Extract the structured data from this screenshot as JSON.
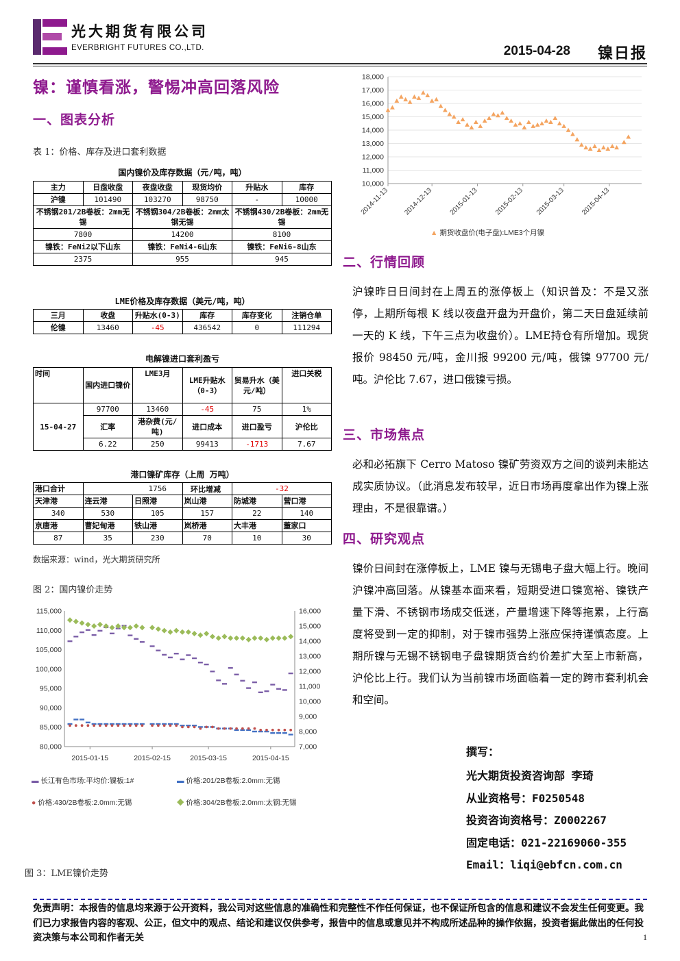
{
  "header": {
    "company_cn": "光大期货有限公司",
    "company_en": "EVERBRIGHT FUTURES CO.,LTD.",
    "date": "2015-04-28",
    "report_type": "镍日报"
  },
  "title": "镍：谨慎看涨，警惕冲高回落风险",
  "sections": {
    "s1": "一、图表分析",
    "s2": "二、行情回顾",
    "s3": "三、市场焦点",
    "s4": "四、研究观点"
  },
  "captions": {
    "table1": "表 1：价格、库存及进口套利数据",
    "source": "数据来源：wind，光大期货研究所",
    "fig2": "图 2：国内镍价走势",
    "fig3": "图 3：LME镍价走势"
  },
  "domestic": {
    "title": "国内镍价及库存数据（元/吨，吨）",
    "headers": [
      "主力",
      "日盘收盘",
      "夜盘收盘",
      "现货均价",
      "升贴水",
      "库存"
    ],
    "row": [
      "沪镍",
      "101490",
      "103270",
      "98750",
      "-",
      "10000"
    ],
    "ss_labels": [
      "不锈钢201/2B卷板：2mm无锡",
      "不锈钢304/2B卷板：2mm太钢无锡",
      "不锈钢430/2B卷板：2mm无锡"
    ],
    "ss_values": [
      "7800",
      "14200",
      "8100"
    ],
    "fe_labels": [
      "镍铁：FeNi2以下山东",
      "镍铁：FeNi4-6山东",
      "镍铁：FeNi6-8山东"
    ],
    "fe_values": [
      "2375",
      "955",
      "945"
    ]
  },
  "lme": {
    "title": "LME价格及库存数据（美元/吨，吨）",
    "headers": [
      "三月",
      "收盘",
      "升贴水(0-3)",
      "库存",
      "库存变化",
      "注销仓单"
    ],
    "row": [
      "伦镍",
      "13460",
      "-45",
      "436542",
      "0",
      "111294"
    ]
  },
  "arb": {
    "title": "电解镍进口套利盈亏",
    "headers": [
      "时间",
      "国内进口镍价",
      "LME3月",
      "LME升贴水（0-3）",
      "贸易升水（美元/吨）",
      "进口关税"
    ],
    "date": "15-04-27",
    "row1": [
      "97700",
      "13460",
      "-45",
      "75",
      "1%"
    ],
    "headers2": [
      "汇率",
      "港杂费(元/吨)",
      "进口成本",
      "进口盈亏",
      "沪伦比"
    ],
    "row2": [
      "6.22",
      "250",
      "99413",
      "-1713",
      "7.67"
    ]
  },
  "port": {
    "title": "港口镍矿库存（上周 万吨）",
    "total_label": "港口合计",
    "total_value": "1756",
    "chg_label": "环比增减",
    "chg_value": "-32",
    "names1": [
      "天津港",
      "连云港",
      "日照港",
      "岚山港",
      "防城港",
      "营口港"
    ],
    "vals1": [
      "340",
      "530",
      "105",
      "157",
      "22",
      "140"
    ],
    "names2": [
      "京唐港",
      "曹妃甸港",
      "铁山港",
      "岚桥港",
      "大丰港",
      "董家口"
    ],
    "vals2": [
      "87",
      "35",
      "230",
      "70",
      "10",
      "30"
    ]
  },
  "paragraphs": {
    "review": "沪镍昨日日间封在上周五的涨停板上（知识普及：不是又涨停，上期所每根 K 线以夜盘开盘为开盘价，第二天日盘延续前一天的 K 线，下午三点为收盘价）。LME持仓有所增加。现货报价 98450 元/吨，金川报 99200 元/吨，俄镍 97700 元/吨。沪伦比 7.67，进口俄镍亏损。",
    "focus": "必和必拓旗下 Cerro Matoso 镍矿劳资双方之间的谈判未能达成实质协议。（此消息发布较早，近日市场再度拿出作为镍上涨理由，不是很靠谱。）",
    "view": "镍价日间封在涨停板上，LME 镍与无锡电子盘大幅上行。晚间沪镍冲高回落。从镍基本面来看，短期受进口镍宽裕、镍铁产量下滑、不锈钢市场成交低迷，产量增速下降等拖累，上行高度将受到一定的抑制，对于镍市强势上涨应保持谨慎态度。上期所镍与无锡不锈钢电子盘镍期货合约价差扩大至上市新高，沪伦比上行。我们认为当前镍市场面临着一定的跨市套利机会和空间。"
  },
  "author": {
    "write": "撰写：",
    "dept": "光大期货投资咨询部  李琦",
    "cert1": "从业资格号：F0250548",
    "cert2": "投资咨询资格号：Z0002267",
    "phone": "固定电话：021-22169060-355",
    "email": "Email：liqi@ebfcn.com.cn"
  },
  "disclaimer": "免责声明：本报告的信息均来源于公开资料，我公司对这些信息的准确性和完整性不作任何保证，也不保证所包含的信息和建议不会发生任何变更。我们已力求报告内容的客观、公正，但文中的观点、结论和建议仅供参考，报告中的信息或意见并不构成所述品种的操作依据，投资者据此做出的任何投资决策与本公司和作者无关",
  "page": "1",
  "chart_data": [
    {
      "type": "scatter",
      "marker": "triangle",
      "color": "#f4a460",
      "series": [
        {
          "name": "期货收盘价(电子盘):LME3个月镍"
        }
      ],
      "x_ticks": [
        "2014-11-13",
        "2014-12-13",
        "2015-01-13",
        "2015-02-13",
        "2015-03-13",
        "2015-04-13"
      ],
      "y_ticks": [
        "10,000",
        "11,000",
        "12,000",
        "13,000",
        "14,000",
        "15,000",
        "16,000",
        "17,000",
        "18,000"
      ],
      "ylim": [
        10000,
        18000
      ],
      "x_start": "2014-11-13",
      "x_days": [
        0,
        3,
        6,
        9,
        12,
        15,
        18,
        21,
        24,
        27,
        30,
        33,
        36,
        39,
        42,
        45,
        48,
        51,
        54,
        57,
        60,
        63,
        66,
        69,
        72,
        75,
        78,
        81,
        84,
        87,
        90,
        93,
        96,
        99,
        102,
        105,
        108,
        111,
        114,
        117,
        120,
        123,
        126,
        129,
        132,
        135,
        138,
        141,
        144,
        147,
        150,
        153,
        156,
        161,
        164
      ],
      "values": [
        15500,
        15700,
        16200,
        16500,
        16300,
        16100,
        16500,
        16400,
        16800,
        16600,
        16200,
        16300,
        15800,
        15500,
        15200,
        15000,
        14600,
        14800,
        14400,
        14200,
        14600,
        14300,
        14700,
        14900,
        15200,
        15100,
        15300,
        14900,
        14700,
        14400,
        14500,
        14200,
        14600,
        14300,
        14400,
        14500,
        14700,
        14600,
        14900,
        14500,
        14300,
        14000,
        13700,
        13300,
        12900,
        12700,
        12600,
        12800,
        12500,
        12700,
        12600,
        12800,
        12700,
        13100,
        13500
      ]
    },
    {
      "type": "scatter",
      "marker": "dash",
      "x_ticks": [
        "2015-01-15",
        "2015-02-15",
        "2015-03-15",
        "2015-04-15"
      ],
      "y_left_ticks": [
        "80,000",
        "85,000",
        "90,000",
        "95,000",
        "100,000",
        "105,000",
        "110,000",
        "115,000"
      ],
      "y_right_ticks": [
        "7,000",
        "8,000",
        "9,000",
        "10,000",
        "11,000",
        "12,000",
        "13,000",
        "14,000",
        "15,000",
        "16,000"
      ],
      "ylim_left": [
        80000,
        115000
      ],
      "ylim_right": [
        7000,
        16000
      ],
      "x_start": "2015-01-05",
      "series": [
        {
          "name": "长江有色市场:平均价:镍板:1#",
          "axis": "left",
          "color": "#7b5ea7",
          "x_days": [
            0,
            3,
            6,
            9,
            12,
            15,
            18,
            21,
            24,
            27,
            30,
            33,
            36,
            41,
            44,
            47,
            50,
            53,
            56,
            59,
            62,
            65,
            68,
            71,
            74,
            77,
            80,
            83,
            86,
            89,
            92,
            95,
            98,
            101,
            104,
            107,
            110
          ],
          "values": [
            107200,
            108400,
            109500,
            110100,
            108800,
            109900,
            110800,
            109200,
            110500,
            111200,
            108700,
            107800,
            107000,
            105900,
            104800,
            103700,
            103000,
            104000,
            102500,
            103600,
            102800,
            101700,
            101200,
            99400,
            97100,
            96200,
            100300,
            98600,
            97000,
            95100,
            96600,
            94000,
            94300,
            96000,
            94900,
            94600,
            98900
          ]
        },
        {
          "name": "价格:201/2B卷板:2.0mm:无锡",
          "axis": "right",
          "color": "#4472c4",
          "x_days": [
            0,
            3,
            6,
            9,
            12,
            15,
            18,
            21,
            24,
            27,
            30,
            33,
            36,
            41,
            44,
            47,
            50,
            53,
            56,
            59,
            62,
            65,
            68,
            71,
            74,
            77,
            80,
            83,
            86,
            89,
            92,
            95,
            98,
            101,
            104,
            107,
            110
          ],
          "values": [
            8500,
            8800,
            8800,
            8600,
            8500,
            8500,
            8500,
            8500,
            8500,
            8500,
            8500,
            8500,
            8500,
            8500,
            8500,
            8500,
            8500,
            8500,
            8400,
            8400,
            8400,
            8300,
            8300,
            8300,
            8200,
            8200,
            8200,
            8100,
            8100,
            8100,
            8000,
            8000,
            8000,
            7900,
            7900,
            7900,
            7800
          ]
        },
        {
          "name": "价格:430/2B卷板:2.0mm:无锡",
          "axis": "right",
          "color": "#c0504d",
          "x_days": [
            0,
            3,
            6,
            9,
            12,
            15,
            18,
            21,
            24,
            27,
            30,
            33,
            36,
            41,
            44,
            47,
            50,
            53,
            56,
            59,
            62,
            65,
            68,
            71,
            74,
            77,
            80,
            83,
            86,
            89,
            92,
            95,
            98,
            101,
            104,
            107,
            110
          ],
          "values": [
            8400,
            8400,
            8400,
            8400,
            8400,
            8400,
            8400,
            8400,
            8400,
            8400,
            8400,
            8400,
            8400,
            8400,
            8400,
            8400,
            8400,
            8400,
            8300,
            8300,
            8300,
            8200,
            8300,
            8300,
            8200,
            8200,
            8200,
            8200,
            8200,
            8200,
            8200,
            8100,
            8100,
            8100,
            8100,
            8100,
            8100
          ]
        },
        {
          "name": "价格:304/2B卷板:2.0mm:太钢:无锡",
          "axis": "right",
          "color": "#9bbb59",
          "x_days": [
            0,
            3,
            6,
            9,
            12,
            15,
            18,
            21,
            24,
            27,
            30,
            33,
            36,
            41,
            44,
            47,
            50,
            53,
            56,
            59,
            62,
            65,
            68,
            71,
            74,
            77,
            80,
            83,
            86,
            89,
            92,
            95,
            98,
            101,
            104,
            107,
            110
          ],
          "values": [
            15400,
            15300,
            15200,
            15100,
            15000,
            15100,
            15000,
            14900,
            15000,
            14900,
            14900,
            15000,
            14900,
            14900,
            14800,
            14700,
            14600,
            14700,
            14600,
            14600,
            14500,
            14400,
            14500,
            14300,
            14200,
            14300,
            14200,
            14200,
            14200,
            14100,
            14200,
            14200,
            14100,
            14200,
            14200,
            14200,
            14300
          ]
        }
      ]
    }
  ]
}
